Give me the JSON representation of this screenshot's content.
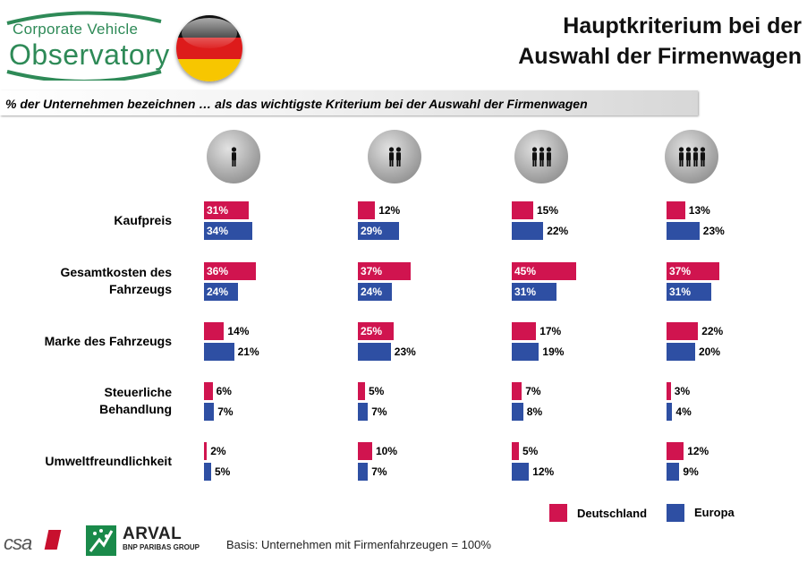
{
  "logo": {
    "line1": "Corporate Vehicle",
    "line2": "Observatory"
  },
  "title_lines": [
    "Hauptkriterium bei der",
    "Auswahl der Firmenwagen"
  ],
  "subtitle": "% der Unternehmen bezeichnen … als das wichtigste Kriterium bei der Auswahl der Firmenwagen",
  "colors": {
    "deutschland": "#d0144f",
    "europa": "#2e4fa3",
    "logo_green": "#2e8a57"
  },
  "chart_data": {
    "type": "bar",
    "orientation": "horizontal",
    "categories": [
      "Kaufpreis",
      "Gesamtkosten des Fahrzeugs",
      "Marke des Fahrzeugs",
      "Steuerliche Behandlung",
      "Umweltfreundlichkeit"
    ],
    "category_lines": [
      [
        "Kaufpreis"
      ],
      [
        "Gesamtkosten des",
        "Fahrzeugs"
      ],
      [
        "Marke des Fahrzeugs"
      ],
      [
        "Steuerliche",
        "Behandlung"
      ],
      [
        "Umweltfreundlichkeit"
      ]
    ],
    "groups": [
      {
        "icon": "one-person-icon",
        "persons": 1
      },
      {
        "icon": "two-persons-icon",
        "persons": 2
      },
      {
        "icon": "three-persons-icon",
        "persons": 3
      },
      {
        "icon": "four-persons-icon",
        "persons": 4
      }
    ],
    "series": [
      {
        "name": "Deutschland",
        "values": [
          [
            31,
            36,
            14,
            6,
            2
          ],
          [
            12,
            37,
            25,
            5,
            10
          ],
          [
            15,
            45,
            17,
            7,
            5
          ],
          [
            13,
            37,
            22,
            3,
            12
          ]
        ]
      },
      {
        "name": "Europa",
        "values": [
          [
            34,
            24,
            21,
            7,
            5
          ],
          [
            29,
            24,
            23,
            7,
            7
          ],
          [
            22,
            31,
            19,
            8,
            12
          ],
          [
            23,
            31,
            20,
            4,
            9
          ]
        ]
      }
    ],
    "value_suffix": "%",
    "legend_position": "bottom-right"
  },
  "footer": {
    "csa": "csa",
    "arval_name": "ARVAL",
    "arval_sub": "BNP PARIBAS GROUP",
    "basis": "Basis: Unternehmen mit Firmenfahrzeugen = 100%"
  }
}
